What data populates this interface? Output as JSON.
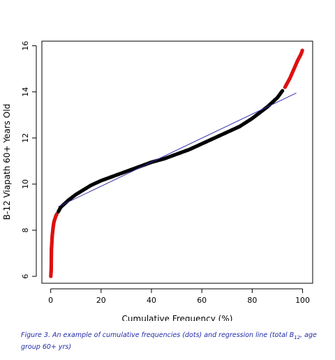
{
  "chart_data": {
    "type": "scatter",
    "xlabel": "Cumulative Frequency (%)",
    "ylabel": "B-12 Viapath 60+ Years Old",
    "xlim": [
      -3.5,
      104
    ],
    "ylim": [
      5.7,
      16.2
    ],
    "x_ticks": [
      0,
      20,
      40,
      60,
      80,
      100
    ],
    "y_ticks": [
      6,
      8,
      10,
      12,
      14,
      16
    ],
    "grid": false,
    "series": [
      {
        "role": "cumulative frequency dots (tails)",
        "color": "#dd1111",
        "points": [
          [
            0.05,
            6.0
          ],
          [
            0.1,
            6.1
          ],
          [
            0.15,
            6.2
          ],
          [
            0.2,
            6.25
          ],
          [
            0.3,
            7.2
          ],
          [
            0.4,
            7.35
          ],
          [
            0.5,
            7.55
          ],
          [
            0.6,
            7.75
          ],
          [
            0.7,
            7.85
          ],
          [
            0.8,
            7.95
          ],
          [
            0.9,
            8.05
          ],
          [
            1.0,
            8.15
          ],
          [
            1.2,
            8.3
          ],
          [
            1.4,
            8.4
          ],
          [
            1.7,
            8.5
          ],
          [
            2.0,
            8.6
          ],
          [
            2.4,
            8.7
          ],
          [
            93.0,
            14.2
          ],
          [
            94.0,
            14.4
          ],
          [
            95.0,
            14.6
          ],
          [
            96.0,
            14.85
          ],
          [
            97.0,
            15.1
          ],
          [
            98.0,
            15.35
          ],
          [
            98.7,
            15.5
          ],
          [
            99.2,
            15.6
          ],
          [
            99.6,
            15.7
          ],
          [
            99.9,
            15.8
          ]
        ]
      },
      {
        "role": "cumulative frequency dots (body)",
        "color": "#000000",
        "points": [
          [
            3,
            8.8
          ],
          [
            4,
            9.0
          ],
          [
            5,
            9.1
          ],
          [
            7,
            9.3
          ],
          [
            10,
            9.55
          ],
          [
            13,
            9.75
          ],
          [
            16,
            9.95
          ],
          [
            20,
            10.15
          ],
          [
            25,
            10.35
          ],
          [
            30,
            10.55
          ],
          [
            35,
            10.75
          ],
          [
            40,
            10.95
          ],
          [
            45,
            11.1
          ],
          [
            50,
            11.3
          ],
          [
            55,
            11.5
          ],
          [
            60,
            11.75
          ],
          [
            65,
            12.0
          ],
          [
            70,
            12.25
          ],
          [
            75,
            12.5
          ],
          [
            80,
            12.85
          ],
          [
            83,
            13.1
          ],
          [
            86,
            13.35
          ],
          [
            88,
            13.55
          ],
          [
            90,
            13.75
          ],
          [
            92,
            14.05
          ]
        ]
      }
    ],
    "regression_line": {
      "color": "#3333aa",
      "x": [
        3,
        97.5
      ],
      "y": [
        9.02,
        13.95
      ]
    }
  },
  "caption": {
    "text_before_sub": "Figure 3. An example of cumulative frequencies (dots) and regression line (total B",
    "subscript": "12",
    "text_after_sub": ", age group 60+ yrs)"
  }
}
